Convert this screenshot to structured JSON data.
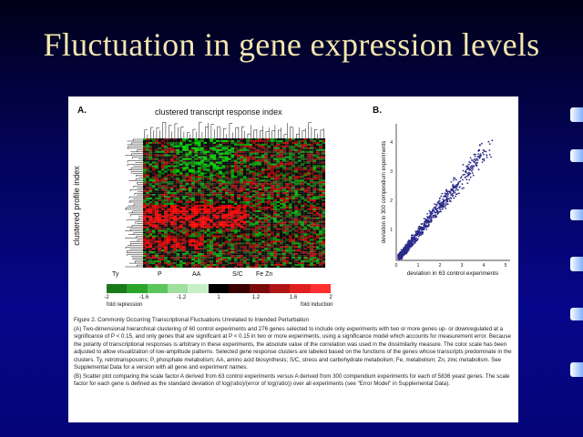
{
  "slide": {
    "title": "Fluctuation in gene expression levels"
  },
  "figure": {
    "panel_a": {
      "label": "A.",
      "title": "clustered transcript response index",
      "side_label": "clustered profile index",
      "cluster_labels": [
        "Ty",
        "P",
        "AA",
        "S/C",
        "Fe Zn"
      ],
      "colorbar": {
        "ticks": [
          "-2",
          "-1.6",
          "-1.2",
          "1",
          "1.2",
          "1.6",
          "2"
        ],
        "left_label": "fold repression",
        "right_label": "fold induction",
        "colors": [
          "#1a7a1a",
          "#2aa52a",
          "#5cc55c",
          "#9fe09f",
          "#c8f0c8",
          "#000000",
          "#3a0000",
          "#7a0a0a",
          "#b01515",
          "#e02020",
          "#ff3030"
        ]
      }
    },
    "panel_b": {
      "label": "B.",
      "x_label": "deviation in 63 control experiments",
      "y_label": "deviation in 300 compendium experiments",
      "x_ticks": [
        "0",
        "1",
        "2",
        "3",
        "4",
        "5"
      ],
      "y_ticks": [
        "1",
        "2",
        "3",
        "4"
      ],
      "point_color": "#2a2a8a"
    },
    "caption": {
      "heading": "Figure 2. Commonly Occurring Transcriptional Fluctuations Unrelated to Intended Perturbation",
      "part_a": "(A) Two-dimensional hierarchical clustering of 60 control experiments and 276 genes selected to include only experiments with two or more genes up- or downregulated at a significance of P < 0.15, and only genes that are significant at P < 0.15 in two or more experiments, using a significance model which accounts for measurement error. Because the polarity of transcriptional responses is arbitrary in these experiments, the absolute value of the correlation was used in the dissimilarity measure. The color scale has been adjusted to allow visualization of low-amplitude patterns. Selected gene response clusters are labeled based on the functions of the genes whose transcripts predominate in the clusters. Ty, retrotransposons; P, phosphate metabolism; AA, amino acid biosynthesis; S/C, stress and carbohydrate metabolism; Fe, metabolism; Zn, zinc metabolism. See Supplemental Data for a version with all gene and experiment names.",
      "part_b": "(B) Scatter plot comparing the scale factor A derived from 63 control experiments versus A derived from 300 compendium experiments for each of 5836 yeast genes. The scale factor for each gene is defined as the standard deviation of log(ratio)/(error of log(ratio)) over all experiments (see \"Error Model\" in Supplemental Data)."
    }
  }
}
